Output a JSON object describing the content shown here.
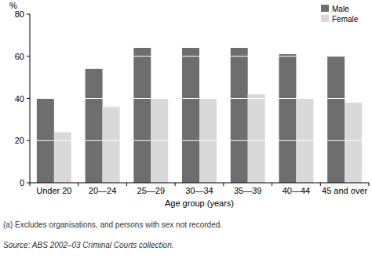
{
  "chart_data": {
    "type": "bar",
    "y_label": "%",
    "x_label": "Age group (years)",
    "categories": [
      "Under 20",
      "20—24",
      "25—29",
      "30—34",
      "35—39",
      "40—44",
      "45 and over"
    ],
    "series": [
      {
        "name": "Male",
        "color": "#6e6e6e",
        "values": [
          40,
          54,
          64,
          64,
          64,
          61,
          60
        ]
      },
      {
        "name": "Female",
        "color": "#d9d9d9",
        "values": [
          24,
          36,
          40,
          40,
          42,
          40,
          38
        ]
      }
    ],
    "ylim": [
      0,
      80
    ],
    "yticks": [
      0,
      20,
      40,
      60,
      80
    ],
    "grid": true,
    "legend": "top-right",
    "annotations": [
      "(a) Excludes organisations, and persons with sex not recorded.",
      "Source: ABS 2002–03 Criminal Courts collection."
    ]
  }
}
